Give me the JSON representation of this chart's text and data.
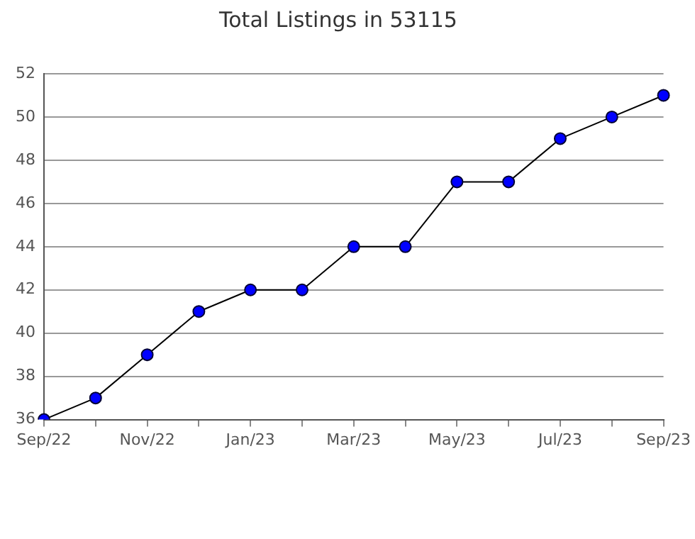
{
  "chart_data": {
    "type": "line",
    "title": "Total Listings in 53115",
    "categories": [
      "Sep/22",
      null,
      "Nov/22",
      null,
      "Jan/23",
      null,
      "Mar/23",
      null,
      "May/23",
      null,
      "Jul/23",
      null,
      "Sep/23"
    ],
    "series": [
      {
        "color": "#0000ff",
        "values": [
          36,
          37,
          39,
          41,
          42,
          42,
          44,
          44,
          47,
          47,
          49,
          50,
          51
        ]
      }
    ],
    "ylim": [
      36,
      52
    ],
    "yticks": [
      36,
      38,
      40,
      42,
      44,
      46,
      48,
      50,
      52
    ],
    "grid": "y",
    "legend": false,
    "marker": "circle",
    "line_style": "solid"
  }
}
